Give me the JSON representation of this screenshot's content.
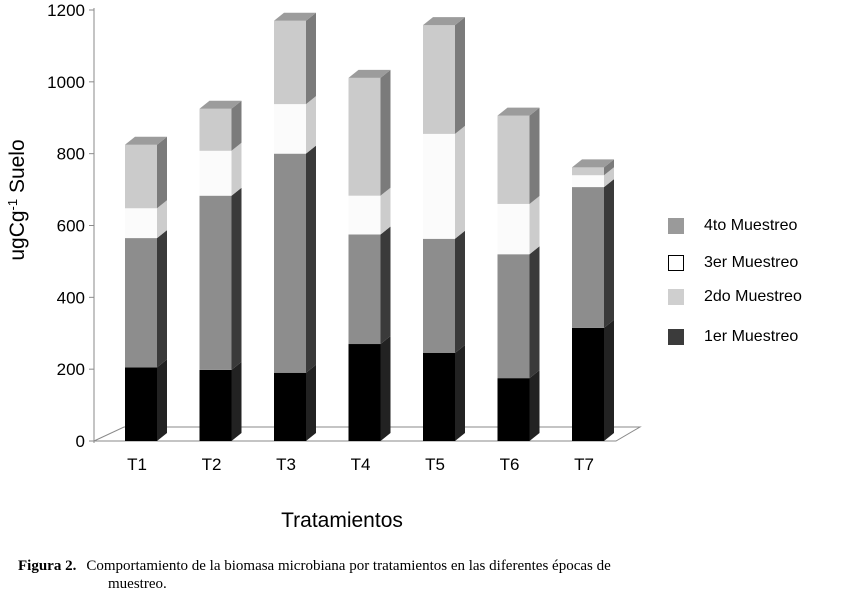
{
  "chart_data": {
    "type": "bar",
    "stacked": true,
    "three_d": true,
    "categories": [
      "T1",
      "T2",
      "T3",
      "T4",
      "T5",
      "T6",
      "T7"
    ],
    "series": [
      {
        "name": "1er Muestreo",
        "values": [
          205,
          198,
          190,
          270,
          245,
          175,
          315
        ],
        "color": "#000000",
        "side_color": "#222222"
      },
      {
        "name": "4to Muestreo",
        "values": [
          360,
          485,
          610,
          305,
          318,
          345,
          392
        ],
        "color": "#8d8d8d",
        "side_color": "#3a3a3a"
      },
      {
        "name": "3er Muestreo",
        "values": [
          83,
          125,
          138,
          108,
          292,
          140,
          33
        ],
        "color": "#fbfbfb",
        "side_color": "#cccccc"
      },
      {
        "name": "2do Muestreo",
        "values": [
          177,
          117,
          232,
          328,
          303,
          246,
          22
        ],
        "color": "#cbcbcb",
        "side_color": "#7b7b7b"
      }
    ],
    "legend_order": [
      "4to Muestreo",
      "3er Muestreo",
      "2do Muestreo",
      "1er Muestreo"
    ],
    "legend_colors": [
      "#9a9a9a",
      "#ffffff",
      "#cfcfcf",
      "#3b3b3b"
    ],
    "y_ticks": [
      "0",
      "200",
      "400",
      "600",
      "800",
      "1000",
      "1200"
    ],
    "ylim": [
      0,
      1200
    ],
    "ylabel_main": "ugCg",
    "ylabel_sup": "-1",
    "ylabel_rest": " Suelo",
    "xlabel": "Tratamientos",
    "legend_position": "right",
    "grid": false
  },
  "caption": {
    "bold": "Figura 2.",
    "line1": "Comportamiento de la biomasa microbiana por tratamientos en las diferentes épocas de",
    "line2": "muestreo."
  }
}
